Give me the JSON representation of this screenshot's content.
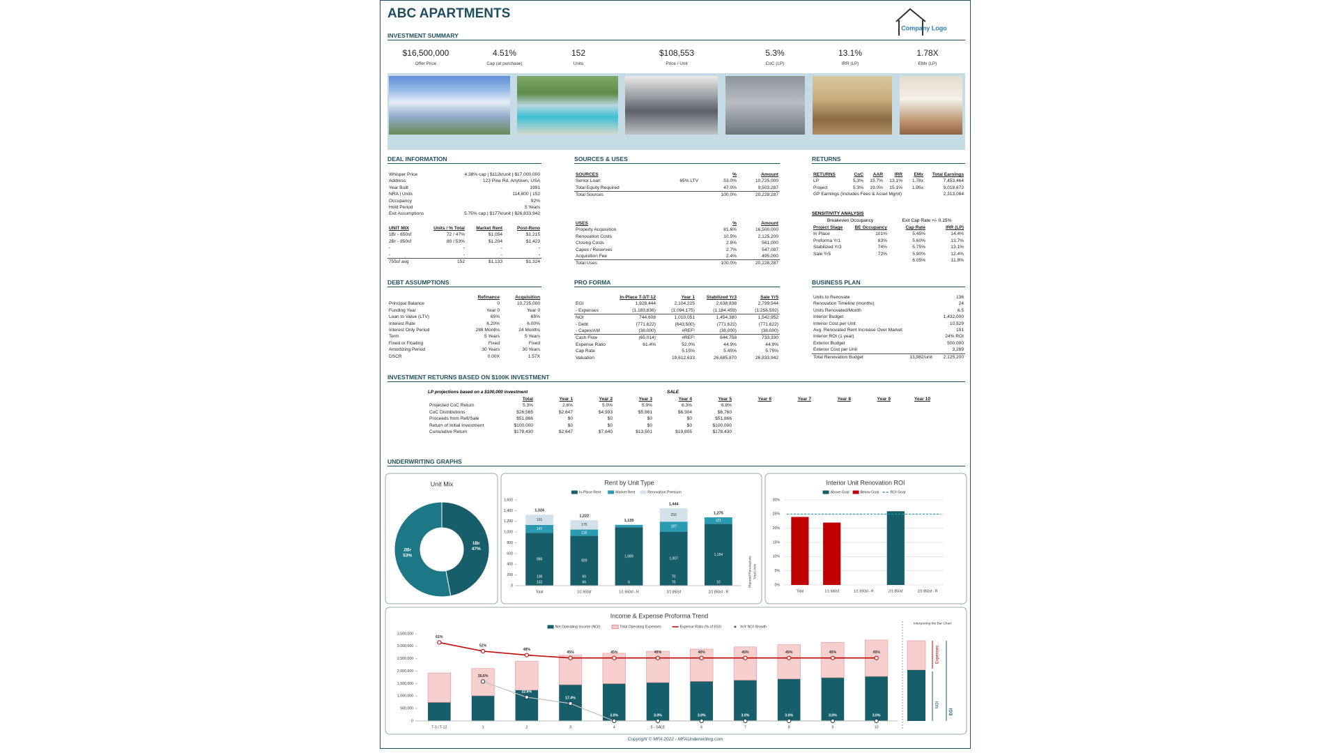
{
  "header": {
    "title": "ABC APARTMENTS",
    "logo": "Company Logo"
  },
  "summary": {
    "heading": "INVESTMENT SUMMARY",
    "metrics": [
      {
        "value": "$16,500,000",
        "label": "Offer Price"
      },
      {
        "value": "4.51%",
        "label": "Cap (at purchase)"
      },
      {
        "value": "152",
        "label": "Units"
      },
      {
        "value": "$108,553",
        "label": "Price / Unit"
      },
      {
        "value": "5.3%",
        "label": "CoC (LP)"
      },
      {
        "value": "13.1%",
        "label": "IRR (LP)"
      },
      {
        "value": "1.78X",
        "label": "EMx (LP)"
      }
    ]
  },
  "deal": {
    "heading": "DEAL INFORMATION",
    "rows": [
      [
        "Whisper Price",
        "4.38% cap | $112k/unit | $17,000,000"
      ],
      [
        "Address",
        "123 Pine Rd, Anytown, USA"
      ],
      [
        "Year Built",
        "1991"
      ],
      [
        "NRA | Units",
        "114,800 | 152"
      ],
      [
        "Occupancy",
        "92%"
      ],
      [
        "Hold Period",
        "5 Years"
      ],
      [
        "Exit Assumptions",
        "5.75% cap | $177k/unit | $26,833,942"
      ]
    ]
  },
  "unit_mix": {
    "header": [
      "UNIT MIX",
      "Units / % Total",
      "Market Rent",
      "Post-Reno"
    ],
    "rows": [
      [
        "1Br - 650sf",
        "72 / 47%",
        "$1,054",
        "$1,215"
      ],
      [
        "2Br - 850sf",
        "80 / 53%",
        "$1,204",
        "$1,423"
      ],
      [
        "-",
        "-",
        "-",
        "-"
      ],
      [
        "-",
        "-",
        "-",
        "-"
      ],
      [
        "755sf avg",
        "152",
        "$1,133",
        "$1,324"
      ]
    ]
  },
  "debt": {
    "heading": "DEBT ASSUMPTIONS",
    "header": [
      null,
      "Refinance",
      "Acquisition"
    ],
    "rows": [
      [
        "Principal Balance",
        "0",
        "10,725,000"
      ],
      [
        "Funding Year",
        "Year 0",
        "Year 0"
      ],
      [
        "Loan to Value (LTV)",
        "65%",
        "65%"
      ],
      [
        "Interest Rate",
        "6.20%",
        "6.00%"
      ],
      [
        "Interest Only Period",
        "288 Months",
        "24 Months"
      ],
      [
        "Term",
        "5 Years",
        "5 Years"
      ],
      [
        "Fixed or Floating",
        "Fixed",
        "Fixed"
      ],
      [
        "Amortizing Period",
        "30 Years",
        "30 Years"
      ],
      [
        "DSCR",
        "0.00X",
        "1.57X"
      ]
    ]
  },
  "sources_uses": {
    "heading": "SOURCES & USES",
    "sources": {
      "header": [
        "SOURCES",
        null,
        "%",
        "Amount"
      ],
      "rows": [
        [
          "Senior Loan",
          "65% LTV",
          "53.0%",
          "10,725,000"
        ],
        [
          "Total Equity Required",
          null,
          "47.0%",
          "9,503,287"
        ],
        [
          "Total Sources",
          null,
          "100.0%",
          "20,228,287"
        ]
      ]
    },
    "uses": {
      "header": [
        "USES",
        null,
        "%",
        "Amount"
      ],
      "rows": [
        [
          "Property Acquisition",
          null,
          "81.6%",
          "16,500,000"
        ],
        [
          "Renovation Costs",
          null,
          "10.5%",
          "2,125,200"
        ],
        [
          "Closing Costs",
          null,
          "2.8%",
          "561,000"
        ],
        [
          "Capex / Reserves",
          null,
          "2.7%",
          "547,087"
        ],
        [
          "Acquisition Fee",
          null,
          "2.4%",
          "495,000"
        ],
        [
          "Total Uses",
          null,
          "100.0%",
          "20,228,287"
        ]
      ]
    }
  },
  "pro_forma": {
    "heading": "PRO FORMA",
    "header": [
      null,
      "In-Place T-3/T-12",
      "Year 1",
      "Stabilized Yr3",
      "Sale Yr5"
    ],
    "rows": [
      [
        "EGI",
        "1,928,444",
        "2,104,225",
        "2,638,838",
        "2,799,544"
      ],
      [
        "- Expenses",
        "(1,183,836)",
        "(1,094,175)",
        "(1,184,459)",
        "(1,256,592)"
      ],
      [
        "NOI",
        "744,608",
        "1,010,051",
        "1,454,380",
        "1,542,952"
      ],
      [
        "- Debt",
        "(771,622)",
        "(643,500)",
        "(771,622)",
        "(771,622)"
      ],
      [
        "- Capex/AM",
        "(38,000)",
        "#REF!",
        "(38,000)",
        "(38,000)"
      ],
      [
        "Cash Flow",
        "(65,014)",
        "#REF!",
        "644,758",
        "733,330"
      ],
      [
        "Expense Ratio",
        "61.4%",
        "52.0%",
        "44.9%",
        "44.9%"
      ],
      [
        "Cap Rate",
        null,
        "5.15%",
        "5.45%",
        "5.75%"
      ],
      [
        "Valuation",
        null,
        "19,612,633",
        "26,685,870",
        "26,833,942"
      ]
    ]
  },
  "returns": {
    "heading": "RETURNS",
    "header": [
      "RETURNS",
      "CoC",
      "AAR",
      "IRR",
      "EMx",
      "Total Earnings"
    ],
    "rows": [
      [
        "LP",
        "5.3%",
        "15.7%",
        "13.1%",
        "1.78x",
        "7,453,464"
      ],
      [
        "Project",
        "5.3%",
        "19.0%",
        "15.1%",
        "1.95x",
        "9,018,672"
      ],
      [
        "GP Earnings (Includes Fees & Asset Mgmt)",
        null,
        null,
        null,
        null,
        "2,313,084"
      ]
    ]
  },
  "sensitivity": {
    "title": "SENSITIVITY ANALYSIS",
    "left_title": "Breakeven Occupancy",
    "right_title": "Exit Cap Rate +/- 0.15%",
    "header": [
      "Project Stage",
      "BE Occupancy",
      "Cap Rate",
      "IRR (LP)"
    ],
    "rows": [
      [
        "In Place",
        "101%",
        "5.45%",
        "14.4%"
      ],
      [
        "Proforma Yr1",
        "83%",
        "5.60%",
        "13.7%"
      ],
      [
        "Stabilized Yr3",
        "74%",
        "5.75%",
        "13.1%"
      ],
      [
        "Sale Yr5",
        "72%",
        "5.90%",
        "12.4%"
      ],
      [
        null,
        null,
        "6.05%",
        "11.8%"
      ]
    ]
  },
  "business_plan": {
    "heading": "BUSINESS PLAN",
    "rows": [
      [
        "Units to Renovate",
        null,
        "136"
      ],
      [
        "Renovation Timeline (months)",
        null,
        "24"
      ],
      [
        "Units Renovated/Month",
        null,
        "6.5"
      ],
      [
        "Interior Budget",
        null,
        "1,432,000"
      ],
      [
        "Interior Cost per Unit",
        null,
        "10,529"
      ],
      [
        "Avg. Renovated Rent Increase Over Market",
        null,
        "191"
      ],
      [
        "Interior ROI (1 year)",
        null,
        "24% ROI"
      ],
      [
        "Exterior Budget",
        null,
        "500,000"
      ],
      [
        "Exterior Cost per Unit",
        null,
        "3,289"
      ],
      [
        "Total Renovation Budget",
        "13,982/unit",
        "2,125,200"
      ]
    ]
  },
  "investment_returns": {
    "heading": "INVESTMENT RETURNS BASED ON $100K INVESTMENT",
    "caption": "LP projections based on a $100,000 investment",
    "sale_label": "SALE",
    "header": [
      null,
      "Total",
      "Year 1",
      "Year 2",
      "Year 3",
      "Year 4",
      "Year 5",
      "Year 6",
      "Year 7",
      "Year 8",
      "Year 9",
      "Year 10"
    ],
    "rows": [
      [
        "Projected CoC Return",
        "5.3%",
        "2.6%",
        "5.0%",
        "5.9%",
        "6.3%",
        "6.8%"
      ],
      [
        "CoC Distributions",
        "$26,565",
        "$2,647",
        "$4,993",
        "$5,861",
        "$6,304",
        "$6,760"
      ],
      [
        "Proceeds from Refi/Sale",
        "$51,866",
        "$0",
        "$0",
        "$0",
        "$0",
        "$51,866"
      ],
      [
        "Return of Initial Investment",
        "$100,000",
        "$0",
        "$0",
        "$0",
        "$0",
        "$100,000"
      ],
      [
        "Cumulative Return",
        "$178,430",
        "$2,647",
        "$7,640",
        "$13,501",
        "$19,805",
        "$178,430"
      ]
    ]
  },
  "graphs_heading": "UNDERWRITING GRAPHS",
  "charts": {
    "unit_mix": {
      "type": "pie",
      "title": "Unit Mix",
      "labels": [
        "1Br",
        "2Br"
      ],
      "values": [
        47,
        53
      ],
      "value_labels": [
        "47%",
        "53%"
      ],
      "colors": [
        "#175e6b",
        "#1b7884"
      ]
    },
    "rent": {
      "type": "bar",
      "title": "Rent by Unit Type",
      "categories": [
        "Total",
        "1/1 650sf",
        "1/1 650sf - R",
        "2/1 850sf",
        "2/1 850sf - R"
      ],
      "series": [
        {
          "name": "In-Place Rent",
          "color": "#175e6b",
          "values": [
            986,
            929,
            1089,
            1007,
            1154
          ],
          "value_labels": [
            "986",
            "929",
            "1,089",
            "1,007",
            "1,154"
          ]
        },
        {
          "name": "Market Rent",
          "color": "#2a9bb0",
          "values": [
            147,
            118,
            46,
            187,
            121
          ],
          "value_labels": [
            "147",
            "118",
            null,
            "187",
            "121"
          ]
        },
        {
          "name": "Renovation Premium",
          "color": "#d3e2ea",
          "values": [
            191,
            175,
            null,
            250,
            null
          ]
        }
      ],
      "totals": {
        "values": [
          1324,
          1222,
          1135,
          1444,
          1275
        ],
        "value_labels": [
          "1,324",
          "1,222",
          "1,135",
          "1,444",
          "1,275"
        ]
      },
      "planned": {
        "name": "Planned Renovations",
        "values": [
          136,
          66,
          null,
          70,
          null
        ]
      },
      "units": {
        "name": "Total Units",
        "values": [
          152,
          66,
          6,
          70,
          10
        ]
      },
      "ylim": [
        0,
        1600
      ],
      "yticks": [
        0,
        200,
        400,
        600,
        800,
        {
          "value": 1000,
          "label": "1,000"
        },
        {
          "value": 1200,
          "label": "1,200"
        },
        {
          "value": 1400,
          "label": "1,400"
        },
        {
          "value": 1600,
          "label": "1,600"
        }
      ]
    },
    "roi": {
      "type": "bar",
      "title": "Interior Unit Renovation ROI",
      "categories": [
        "Total",
        "1/1 650sf",
        "1/1 650sf - R",
        "2/1 850sf",
        "2/1 850sf - R"
      ],
      "series": [
        {
          "name": "Above Goal",
          "color": "#175e6b",
          "values": [
            null,
            null,
            null,
            26,
            null
          ]
        },
        {
          "name": "Below Goal",
          "color": "#c00000",
          "values": [
            24,
            22,
            null,
            null,
            null
          ]
        }
      ],
      "goal": {
        "name": "ROI Goal",
        "color": "#2a9bb0",
        "value": 25
      },
      "ylim": [
        0,
        30
      ],
      "yticks": [
        {
          "value": 0,
          "label": "0%"
        },
        {
          "value": 5,
          "label": "5%"
        },
        {
          "value": 10,
          "label": "10%"
        },
        {
          "value": 15,
          "label": "15%"
        },
        {
          "value": 20,
          "label": "20%"
        },
        {
          "value": 25,
          "label": "25%"
        },
        {
          "value": 30,
          "label": "30%"
        }
      ],
      "grid": true
    },
    "trend": {
      "type": "bar",
      "title": "Income & Expense Proforma Trend",
      "categories": [
        "T-3 / T-12",
        "1",
        "2",
        "3",
        "4",
        "5 - SALE",
        "6",
        "7",
        "8",
        "9",
        "10"
      ],
      "series": [
        {
          "name": "Net Operating Income (NOI)",
          "color": "#175e6b",
          "values": [
            744608,
            1010051,
            1238825,
            1454380,
            1498011,
            1542952,
            1589241,
            1636918,
            1686026,
            1736606,
            1788705
          ]
        },
        {
          "name": "Total Operating Expenses",
          "color": "#f8cfcf",
          "values": [
            1183836,
            1094175,
            1150000,
            1184459,
            1220000,
            1256592,
            1295000,
            1335000,
            1375000,
            1415000,
            1460000
          ]
        },
        {
          "name": "Expense Ratio (% of EGI)",
          "color": "#c00000",
          "axis": "y2",
          "values": [
            61,
            52,
            48,
            45,
            45,
            45,
            45,
            45,
            45,
            45,
            45
          ],
          "value_labels": [
            "61%",
            "52%",
            "48%",
            "45%",
            "45%",
            "45%",
            "45%",
            "45%",
            "45%",
            "45%",
            "45%"
          ]
        },
        {
          "name": "YoY NOI Growth",
          "color": "#bfbfbf",
          "axis": "y3",
          "values": [
            null,
            35.6,
            22.6,
            17.4,
            3,
            3,
            3,
            3,
            3,
            3,
            3
          ],
          "value_labels": [
            null,
            "35.6%",
            "22.6%",
            "17.4%",
            "3.0%",
            "3.0%",
            "3.0%",
            "3.0%",
            "3.0%",
            "3.0%",
            "3.0%"
          ]
        }
      ],
      "ylim": [
        0,
        3500000
      ],
      "y2lim": [
        -20,
        70
      ],
      "y3lim": [
        3,
        75
      ],
      "yticks": [
        0,
        {
          "value": 500000,
          "label": "500,000"
        },
        {
          "value": 1000000,
          "label": "1,000,000"
        },
        {
          "value": 1500000,
          "label": "1,500,000"
        },
        {
          "value": 2000000,
          "label": "2,000,000"
        },
        {
          "value": 2500000,
          "label": "2,500,000"
        },
        {
          "value": 3000000,
          "label": "3,000,000"
        },
        {
          "value": 3500000,
          "label": "3,500,000"
        }
      ],
      "aside": {
        "title": "Interpreting the Bar Chart",
        "expenses": "Expenses",
        "noi": "NOI",
        "egi": "EGI"
      }
    }
  },
  "footer": "Copyright © MFA 2022 - MFAUnderwriting.com"
}
